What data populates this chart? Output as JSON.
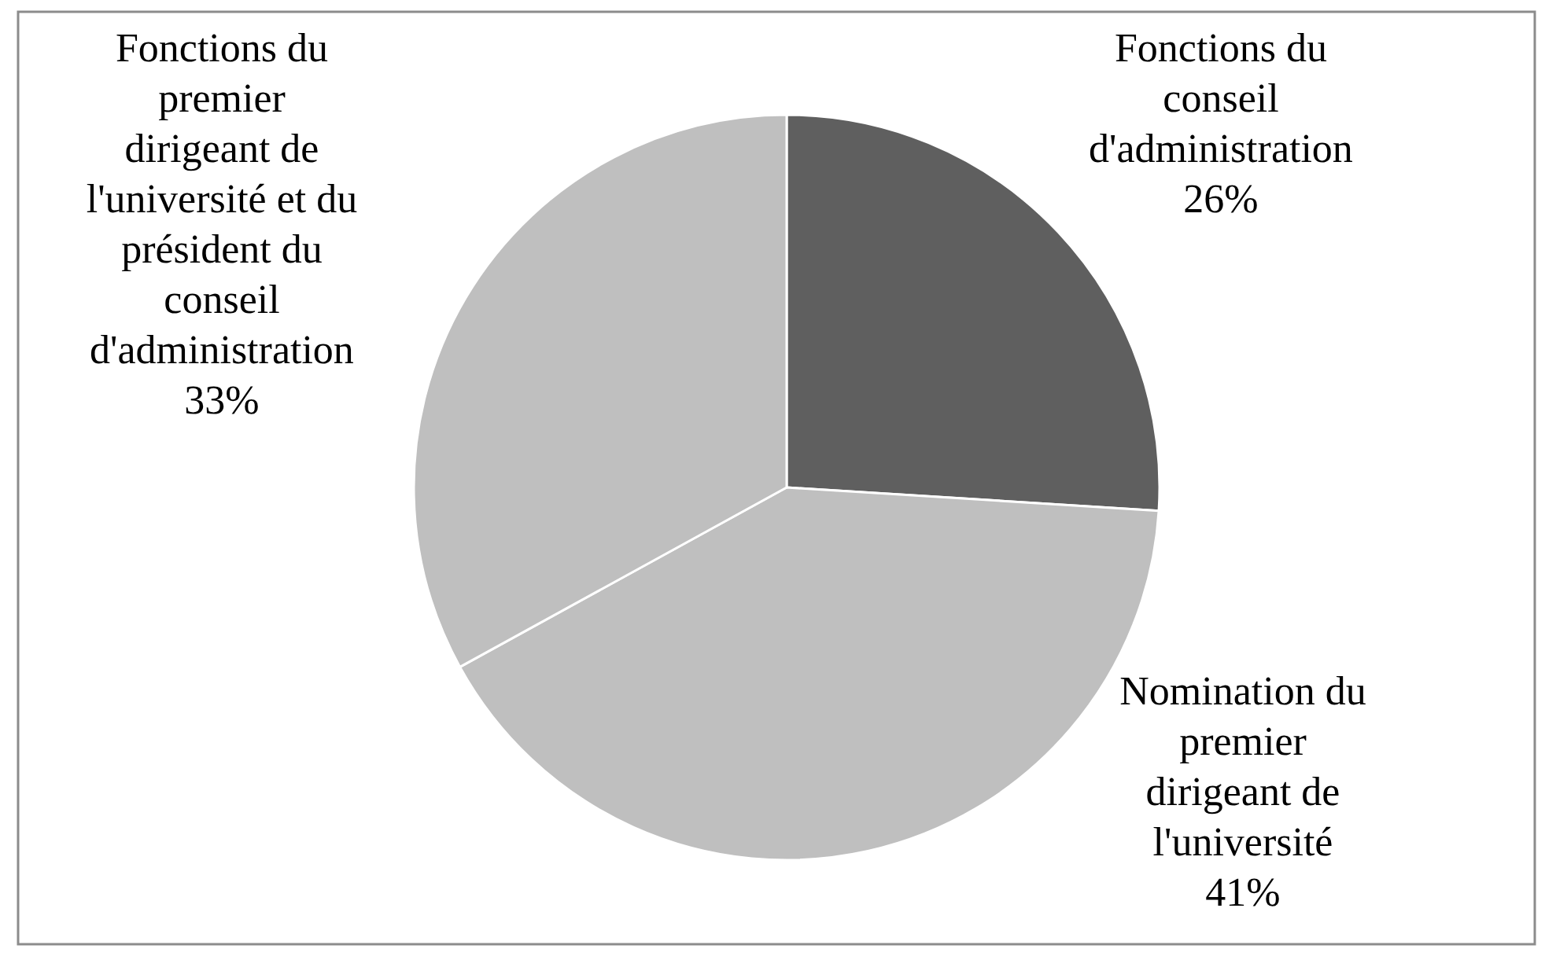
{
  "chart_data": {
    "type": "pie",
    "categories": [
      "Fonctions du conseil d'administration",
      "Nomination du premier dirigeant de l'université",
      "Fonctions du premier dirigeant de l'université et du président du conseil d'administration"
    ],
    "values": [
      26,
      41,
      33
    ],
    "value_labels": [
      "26%",
      "41%",
      "33%"
    ],
    "colors": [
      "#5f5f5f",
      "#bfbfbf",
      "#bfbfbf"
    ]
  }
}
